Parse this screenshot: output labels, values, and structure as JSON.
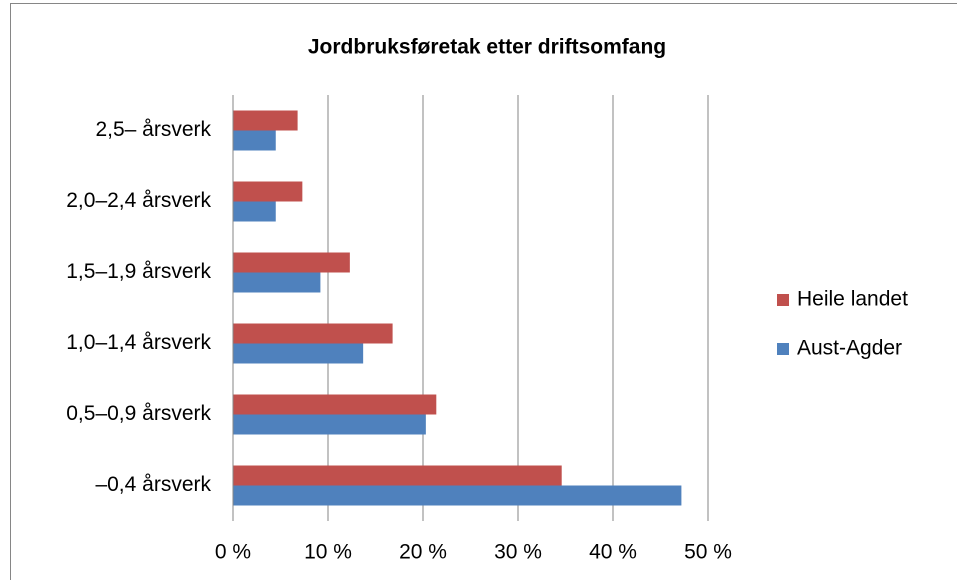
{
  "chart_data": {
    "type": "hbar",
    "title": "Jordbruksføretak etter driftsomfang",
    "categories": [
      "2,5– årsverk",
      "2,0–2,4 årsverk",
      "1,5–1,9 årsverk",
      "1,0–1,4 årsverk",
      "0,5–0,9 årsverk",
      "–0,4 årsverk"
    ],
    "series": [
      {
        "name": "Heile landet",
        "color": "#c0504d",
        "values": [
          6.8,
          7.3,
          12.3,
          16.8,
          21.4,
          34.6
        ]
      },
      {
        "name": "Aust-Agder",
        "color": "#4f81bd",
        "values": [
          4.5,
          4.5,
          9.2,
          13.7,
          20.3,
          47.2
        ]
      }
    ],
    "xlim": [
      0,
      50
    ],
    "xticks": [
      {
        "value": 0,
        "label": "0 %"
      },
      {
        "value": 10,
        "label": "10 %"
      },
      {
        "value": 20,
        "label": "20 %"
      },
      {
        "value": 30,
        "label": "30 %"
      },
      {
        "value": 40,
        "label": "40 %"
      },
      {
        "value": 50,
        "label": "50 %"
      }
    ],
    "grid": true,
    "legend": "right"
  }
}
